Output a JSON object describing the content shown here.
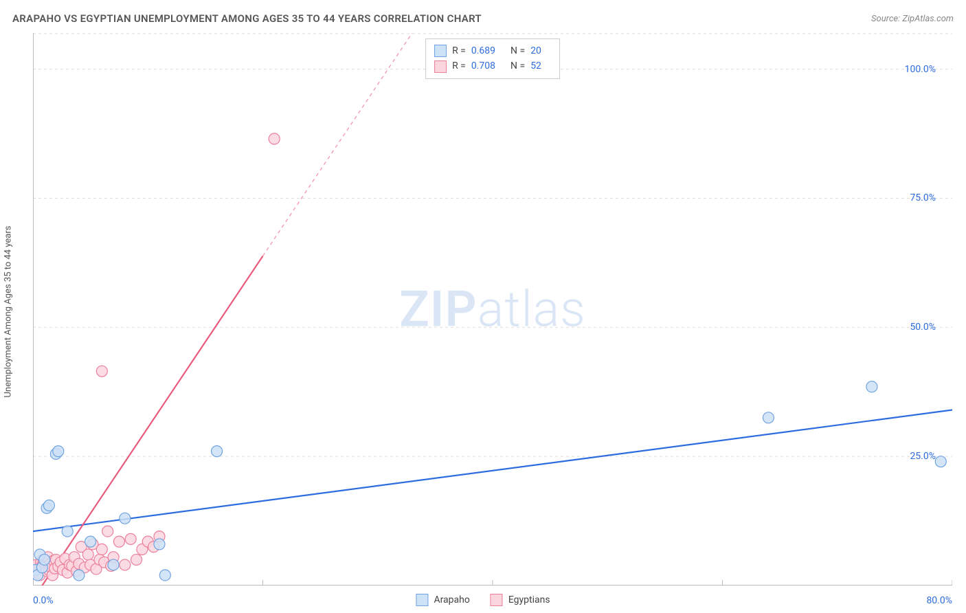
{
  "title": "ARAPAHO VS EGYPTIAN UNEMPLOYMENT AMONG AGES 35 TO 44 YEARS CORRELATION CHART",
  "source": "Source: ZipAtlas.com",
  "y_axis_label": "Unemployment Among Ages 35 to 44 years",
  "watermark": {
    "bold": "ZIP",
    "light": "atlas"
  },
  "chart": {
    "type": "scatter",
    "background_color": "#ffffff",
    "xlim": [
      0,
      80
    ],
    "ylim": [
      0,
      107
    ],
    "x_ticks": [
      0,
      20,
      40,
      60,
      80
    ],
    "y_ticks": [
      25,
      50,
      75,
      100
    ],
    "x_tick_labels_shown": {
      "min": "0.0%",
      "max": "80.0%"
    },
    "y_tick_labels": [
      "25.0%",
      "50.0%",
      "75.0%",
      "100.0%"
    ],
    "grid_color": "#dddddd",
    "grid_dash": "4 4",
    "axis_color": "#bbbbbb",
    "tick_color": "#bbbbbb",
    "label_color": "#2d6cdf",
    "title_color": "#555555",
    "title_fontsize": 15,
    "marker_radius": 8,
    "marker_stroke_width": 1.2,
    "trend_line_width": 2.2,
    "series": [
      {
        "name": "Arapaho",
        "fill": "#cde1f7",
        "stroke": "#6fa3e0",
        "line_color": "#2d6cdf",
        "R": "0.689",
        "N": "20",
        "trend": {
          "x1": 0,
          "y1": 10.5,
          "x2": 80,
          "y2": 34,
          "dash_from_x": null
        },
        "points": [
          [
            0.2,
            3.0
          ],
          [
            0.4,
            2.0
          ],
          [
            0.6,
            6.0
          ],
          [
            0.8,
            3.5
          ],
          [
            1.0,
            5.0
          ],
          [
            1.2,
            15.0
          ],
          [
            1.4,
            15.5
          ],
          [
            2.0,
            25.5
          ],
          [
            2.2,
            26.0
          ],
          [
            3.0,
            10.5
          ],
          [
            4.0,
            2.0
          ],
          [
            5.0,
            8.5
          ],
          [
            7.0,
            4.0
          ],
          [
            8.0,
            13.0
          ],
          [
            11.0,
            8.0
          ],
          [
            11.5,
            2.0
          ],
          [
            16.0,
            26.0
          ],
          [
            64.0,
            32.5
          ],
          [
            73.0,
            38.5
          ],
          [
            79.0,
            24.0
          ]
        ]
      },
      {
        "name": "Egyptians",
        "fill": "#fbd6df",
        "stroke": "#eb7f9a",
        "line_color": "#e85a7c",
        "R": "0.708",
        "N": "52",
        "trend": {
          "x1": 0.5,
          "y1": -1,
          "x2": 33,
          "y2": 107,
          "dash_from_x": 20
        },
        "points": [
          [
            0.1,
            3.0
          ],
          [
            0.2,
            3.5
          ],
          [
            0.3,
            4.0
          ],
          [
            0.4,
            2.5
          ],
          [
            0.5,
            3.0
          ],
          [
            0.6,
            2.0
          ],
          [
            0.7,
            4.5
          ],
          [
            0.8,
            3.8
          ],
          [
            0.9,
            5.0
          ],
          [
            1.0,
            3.2
          ],
          [
            1.1,
            4.0
          ],
          [
            1.2,
            2.8
          ],
          [
            1.3,
            5.5
          ],
          [
            1.4,
            3.0
          ],
          [
            1.5,
            4.2
          ],
          [
            1.6,
            3.5
          ],
          [
            1.7,
            2.0
          ],
          [
            1.8,
            4.8
          ],
          [
            1.9,
            3.3
          ],
          [
            2.0,
            5.0
          ],
          [
            2.2,
            3.7
          ],
          [
            2.4,
            4.5
          ],
          [
            2.6,
            3.0
          ],
          [
            2.8,
            5.2
          ],
          [
            3.0,
            2.5
          ],
          [
            3.2,
            4.0
          ],
          [
            3.4,
            3.8
          ],
          [
            3.6,
            5.5
          ],
          [
            3.8,
            2.8
          ],
          [
            4.0,
            4.2
          ],
          [
            4.2,
            7.5
          ],
          [
            4.5,
            3.5
          ],
          [
            4.8,
            6.0
          ],
          [
            5.0,
            4.0
          ],
          [
            5.2,
            8.0
          ],
          [
            5.5,
            3.2
          ],
          [
            5.8,
            5.0
          ],
          [
            6.0,
            7.0
          ],
          [
            6.2,
            4.5
          ],
          [
            6.5,
            10.5
          ],
          [
            6.8,
            3.8
          ],
          [
            7.0,
            5.5
          ],
          [
            7.5,
            8.5
          ],
          [
            8.0,
            4.0
          ],
          [
            8.5,
            9.0
          ],
          [
            9.0,
            5.0
          ],
          [
            9.5,
            7.0
          ],
          [
            10.0,
            8.5
          ],
          [
            10.5,
            7.5
          ],
          [
            11.0,
            9.5
          ],
          [
            6.0,
            41.5
          ],
          [
            21.0,
            86.5
          ]
        ]
      }
    ]
  },
  "bottom_legend": [
    {
      "label": "Arapaho",
      "fill": "#cde1f7",
      "stroke": "#6fa3e0"
    },
    {
      "label": "Egyptians",
      "fill": "#fbd6df",
      "stroke": "#eb7f9a"
    }
  ]
}
